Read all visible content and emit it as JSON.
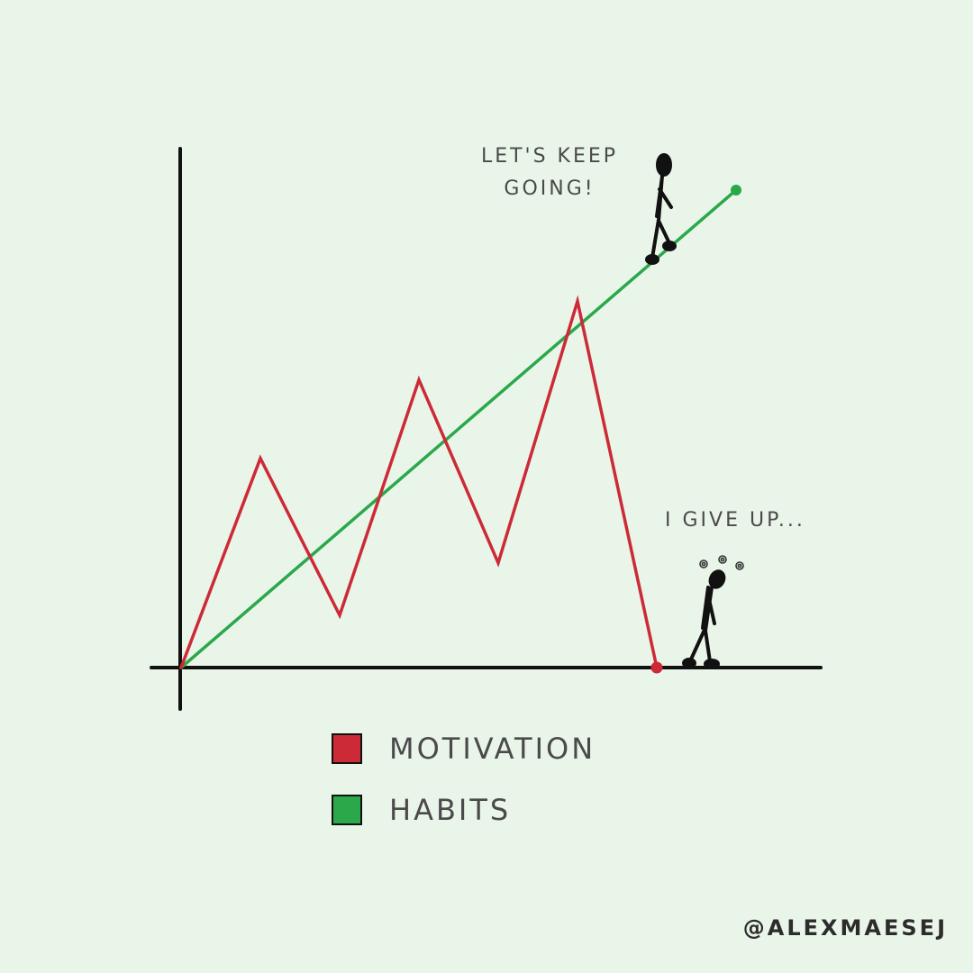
{
  "chart_data": {
    "type": "line",
    "title": "",
    "xlabel": "",
    "ylabel": "",
    "xlim": [
      0,
      8
    ],
    "ylim": [
      0,
      7
    ],
    "grid": false,
    "legend_placement": "bottom",
    "series": [
      {
        "name": "MOTIVATION",
        "color": "#cc2a36",
        "x": [
          0,
          1,
          2,
          3,
          4,
          5,
          6
        ],
        "y": [
          0,
          3.2,
          0.8,
          4.4,
          1.6,
          5.6,
          0
        ]
      },
      {
        "name": "HABITS",
        "color": "#2aa84a",
        "x": [
          0,
          7
        ],
        "y": [
          0,
          7.3
        ]
      }
    ],
    "annotations": [
      {
        "text": "LET'S KEEP GOING!",
        "lines": [
          "LET'S KEEP",
          "GOING!"
        ]
      },
      {
        "text": "I GIVE UP..."
      }
    ]
  },
  "legend": {
    "items": [
      {
        "label": "MOTIVATION",
        "color": "#cc2a36"
      },
      {
        "label": "HABITS",
        "color": "#2aa84a"
      }
    ]
  },
  "credit": "@ALEXMAESEJ",
  "colors": {
    "background": "#eaf5ea",
    "axis": "#111111",
    "text": "#4a4a4a"
  }
}
